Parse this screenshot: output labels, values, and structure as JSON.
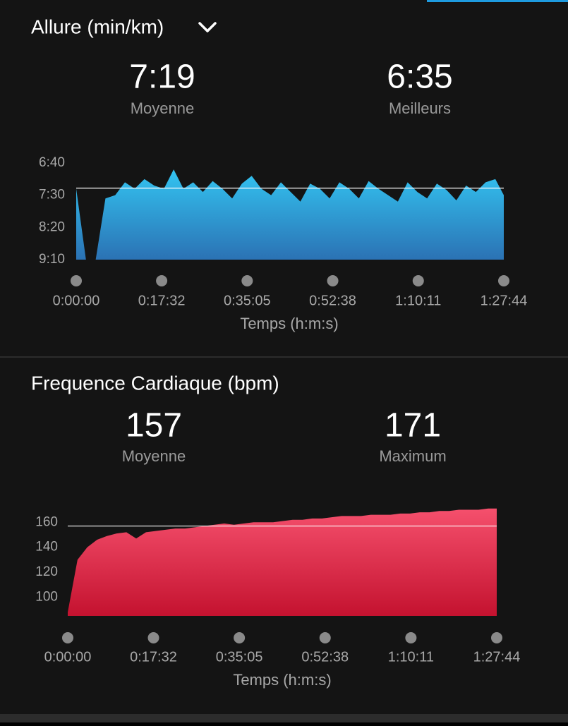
{
  "chart_data": [
    {
      "type": "area",
      "title": "Allure (min/km)",
      "average": {
        "value": 439,
        "label": "7:19"
      },
      "average_caption": "Moyenne",
      "best": "6:35",
      "best_caption": "Meilleurs",
      "xlabel": "Temps (h:m:s)",
      "gradient": [
        "#33c4f1",
        "#2b72b4"
      ],
      "xlim": [
        0,
        5264
      ],
      "xticks": [
        {
          "value": 0,
          "label": "0:00:00"
        },
        {
          "value": 1052,
          "label": "0:17:32"
        },
        {
          "value": 2105,
          "label": "0:35:05"
        },
        {
          "value": 3158,
          "label": "0:52:38"
        },
        {
          "value": 4211,
          "label": "1:10:11"
        },
        {
          "value": 5264,
          "label": "1:27:44"
        }
      ],
      "ylim": [
        550,
        400
      ],
      "yticks": [
        {
          "value": 400,
          "label": "6:40"
        },
        {
          "value": 450,
          "label": "7:30"
        },
        {
          "value": 500,
          "label": "8:20"
        },
        {
          "value": 550,
          "label": "9:10"
        }
      ],
      "x": [
        0,
        120,
        240,
        360,
        480,
        600,
        720,
        840,
        960,
        1080,
        1200,
        1320,
        1440,
        1560,
        1680,
        1800,
        1920,
        2040,
        2160,
        2280,
        2400,
        2520,
        2640,
        2760,
        2880,
        3000,
        3120,
        3240,
        3360,
        3480,
        3600,
        3720,
        3840,
        3960,
        4080,
        4200,
        4320,
        4440,
        4560,
        4680,
        4800,
        4920,
        5040,
        5160,
        5264
      ],
      "values": [
        440,
        550,
        550,
        455,
        450,
        430,
        440,
        425,
        435,
        440,
        410,
        440,
        430,
        445,
        428,
        440,
        455,
        432,
        420,
        440,
        450,
        430,
        445,
        460,
        432,
        440,
        455,
        430,
        440,
        455,
        428,
        440,
        450,
        460,
        430,
        445,
        455,
        432,
        442,
        458,
        435,
        445,
        430,
        425,
        450
      ]
    },
    {
      "type": "area",
      "title": "Frequence Cardiaque (bpm)",
      "average": 157,
      "average_caption": "Moyenne",
      "maximum": 171,
      "maximum_caption": "Maximum",
      "xlabel": "Temps (h:m:s)",
      "gradient": [
        "#f5506d",
        "#c4122f"
      ],
      "xlim": [
        0,
        5264
      ],
      "xticks": [
        {
          "value": 0,
          "label": "0:00:00"
        },
        {
          "value": 1052,
          "label": "0:17:32"
        },
        {
          "value": 2105,
          "label": "0:35:05"
        },
        {
          "value": 3158,
          "label": "0:52:38"
        },
        {
          "value": 4211,
          "label": "1:10:11"
        },
        {
          "value": 5264,
          "label": "1:27:44"
        }
      ],
      "ylim": [
        85,
        172
      ],
      "yticks": [
        100,
        120,
        140,
        160
      ],
      "x": [
        0,
        120,
        240,
        360,
        480,
        600,
        720,
        840,
        960,
        1080,
        1200,
        1320,
        1440,
        1560,
        1680,
        1800,
        1920,
        2040,
        2160,
        2280,
        2400,
        2520,
        2640,
        2760,
        2880,
        3000,
        3120,
        3240,
        3360,
        3480,
        3600,
        3720,
        3840,
        3960,
        4080,
        4200,
        4320,
        4440,
        4560,
        4680,
        4800,
        4920,
        5040,
        5160,
        5264
      ],
      "values": [
        88,
        130,
        140,
        146,
        149,
        151,
        152,
        147,
        152,
        153,
        154,
        155,
        155,
        156,
        157,
        158,
        159,
        158,
        159,
        160,
        160,
        160,
        161,
        162,
        162,
        163,
        163,
        164,
        165,
        165,
        165,
        166,
        166,
        166,
        167,
        167,
        168,
        168,
        169,
        169,
        170,
        170,
        170,
        171,
        171
      ]
    }
  ]
}
